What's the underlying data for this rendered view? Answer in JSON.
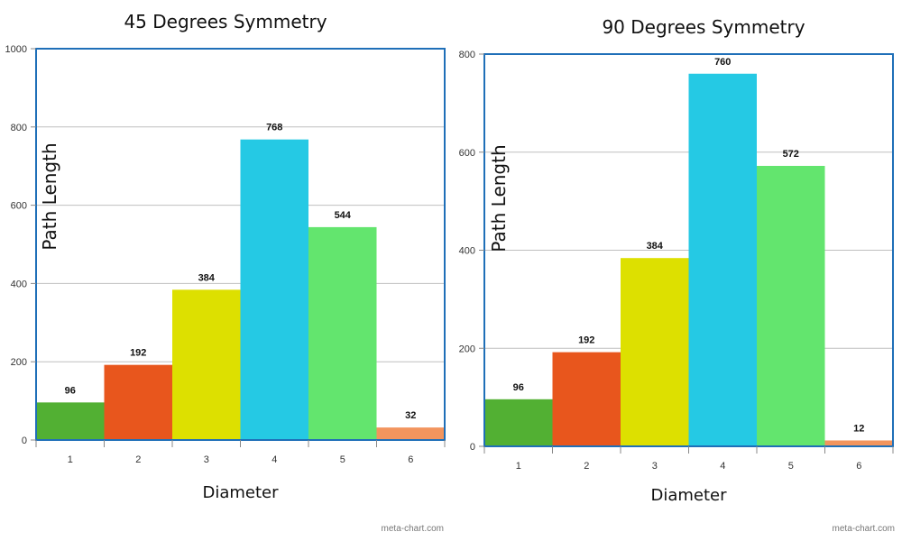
{
  "watermark": "meta-chart.com",
  "colors": [
    "#52b033",
    "#e8561d",
    "#dde000",
    "#25c9e4",
    "#63e56e",
    "#f2955e"
  ],
  "frame_color": "#1f6fb8",
  "grid_color": "#bfbfbf",
  "chart_data": [
    {
      "type": "bar",
      "title": "45 Degrees Symmetry",
      "xlabel": "Diameter",
      "ylabel": "Path Length",
      "categories": [
        "1",
        "2",
        "3",
        "4",
        "5",
        "6"
      ],
      "values": [
        96,
        192,
        384,
        768,
        544,
        32
      ],
      "data_labels": [
        "96",
        "192",
        "384",
        "768",
        "544",
        "32"
      ],
      "ylim": [
        0,
        1000
      ],
      "yticks": [
        0,
        200,
        400,
        600,
        800,
        1000
      ],
      "ytick_labels": [
        "0",
        "200",
        "400",
        "600",
        "800",
        "1000"
      ],
      "grid": true,
      "legend": "none"
    },
    {
      "type": "bar",
      "title": "90 Degrees Symmetry",
      "xlabel": "Diameter",
      "ylabel": "Path Length",
      "categories": [
        "1",
        "2",
        "3",
        "4",
        "5",
        "6"
      ],
      "values": [
        96,
        192,
        384,
        760,
        572,
        12
      ],
      "data_labels": [
        "96",
        "192",
        "384",
        "760",
        "572",
        "12"
      ],
      "ylim": [
        0,
        800
      ],
      "yticks": [
        0,
        200,
        400,
        600,
        800
      ],
      "ytick_labels": [
        "0",
        "200",
        "400",
        "600",
        "800"
      ],
      "grid": true,
      "legend": "none"
    }
  ]
}
